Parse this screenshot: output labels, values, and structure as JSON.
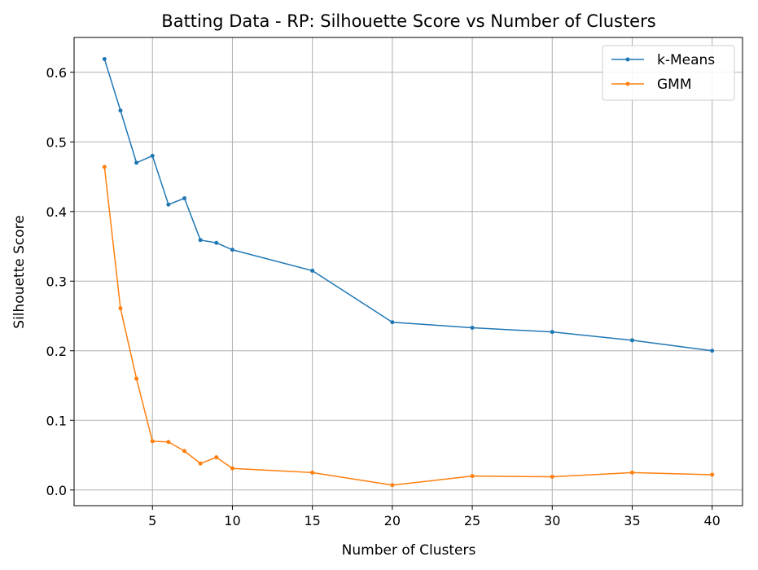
{
  "chart_data": {
    "type": "line",
    "title": "Batting Data - RP: Silhouette Score vs Number of Clusters",
    "xlabel": "Number of Clusters",
    "ylabel": "Silhouette Score",
    "x": [
      2,
      3,
      4,
      5,
      6,
      7,
      8,
      9,
      10,
      15,
      20,
      25,
      30,
      35,
      40
    ],
    "xlim": [
      0.1,
      41.9
    ],
    "ylim": [
      -0.0225,
      0.65
    ],
    "xticks": [
      5,
      10,
      15,
      20,
      25,
      30,
      35,
      40
    ],
    "xtick_labels": [
      "5",
      "10",
      "15",
      "20",
      "25",
      "30",
      "35",
      "40"
    ],
    "yticks": [
      0.0,
      0.1,
      0.2,
      0.3,
      0.4,
      0.5,
      0.6
    ],
    "ytick_labels": [
      "0.0",
      "0.1",
      "0.2",
      "0.3",
      "0.4",
      "0.5",
      "0.6"
    ],
    "grid": true,
    "legend_position": "top-right",
    "series": [
      {
        "name": "k-Means",
        "color": "#1f77b4",
        "values": [
          0.619,
          0.545,
          0.47,
          0.48,
          0.41,
          0.419,
          0.359,
          0.355,
          0.345,
          0.315,
          0.241,
          0.233,
          0.227,
          0.215,
          0.2
        ]
      },
      {
        "name": "GMM",
        "color": "#ff7f0e",
        "values": [
          0.464,
          0.261,
          0.16,
          0.07,
          0.069,
          0.056,
          0.038,
          0.047,
          0.031,
          0.025,
          0.007,
          0.02,
          0.019,
          0.025,
          0.022
        ]
      }
    ]
  }
}
